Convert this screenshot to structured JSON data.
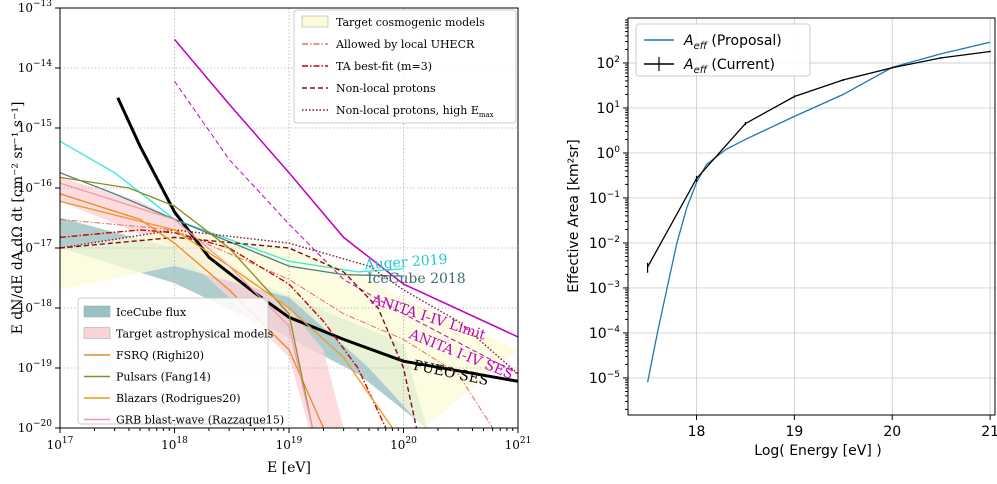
{
  "chart_data": [
    {
      "type": "line",
      "xlabel": "E [eV]",
      "ylabel": "E dN/dE dA dΩ dt [cm⁻² sr⁻¹ s⁻¹]",
      "x_scale": "log",
      "y_scale": "log",
      "xlim": [
        1e+17,
        1e+21
      ],
      "ylim": [
        1e-20,
        1e-13
      ],
      "x_ticks": [
        {
          "value": 1e+17,
          "base": "10",
          "exp": "17"
        },
        {
          "value": 1e+18,
          "base": "10",
          "exp": "18"
        },
        {
          "value": 1e+19,
          "base": "10",
          "exp": "19"
        },
        {
          "value": 1e+20,
          "base": "10",
          "exp": "20"
        },
        {
          "value": 1e+21,
          "base": "10",
          "exp": "21"
        }
      ],
      "y_ticks": [
        {
          "value": 1e-13,
          "base": "10",
          "exp": "−13"
        },
        {
          "value": 1e-14,
          "base": "10",
          "exp": "−14"
        },
        {
          "value": 1e-15,
          "base": "10",
          "exp": "−15"
        },
        {
          "value": 1e-16,
          "base": "10",
          "exp": "−16"
        },
        {
          "value": 1e-17,
          "base": "10",
          "exp": "−17"
        },
        {
          "value": 1e-18,
          "base": "10",
          "exp": "−18"
        },
        {
          "value": 1e-19,
          "base": "10",
          "exp": "−19"
        },
        {
          "value": 1e-20,
          "base": "10",
          "exp": "−20"
        }
      ],
      "grid": true,
      "legend_upper": {
        "placement": "top-right",
        "entries": [
          {
            "label": "Target cosmogenic models",
            "kind": "patch",
            "color": "#fbfbd7"
          },
          {
            "label": "Allowed by local UHECR",
            "kind": "line",
            "color": "#e46d6d",
            "dash": "dashdot-light"
          },
          {
            "label": "TA best-fit (m=3)",
            "kind": "line",
            "color": "#cc0000",
            "dash": "dashdot"
          },
          {
            "label": "Non-local protons",
            "kind": "line",
            "color": "#7b1010",
            "dash": "dashed"
          },
          {
            "label": "Non-local protons, high E",
            "sub": "max",
            "kind": "line",
            "color": "#8b1030",
            "dash": "dotted"
          }
        ]
      },
      "legend_lower": {
        "placement": "bottom-left",
        "entries": [
          {
            "label": "IceCube flux",
            "kind": "patch",
            "color": "#9cc1c2"
          },
          {
            "label": "Target astrophysical models",
            "kind": "patch",
            "color": "#fbd3d7"
          },
          {
            "label": "FSRQ (Righi20)",
            "kind": "line",
            "color": "#e8892a"
          },
          {
            "label": "Pulsars (Fang14)",
            "kind": "line",
            "color": "#8c8c1a"
          },
          {
            "label": "Blazars (Rodrigues20)",
            "kind": "line",
            "color": "#f09a1a"
          },
          {
            "label": "GRB blast-wave (Razzaque15)",
            "kind": "line",
            "color": "#ee9aa8"
          }
        ]
      },
      "annotations": [
        {
          "text": "Auger 2019",
          "x": 4.6e+19,
          "y": 4.4e-18,
          "color": "#22c8c8",
          "rotate": -4
        },
        {
          "text": "IceCube 2018",
          "x": 4.8e+19,
          "y": 2.6e-18,
          "color": "#3d6b6b",
          "rotate": 0
        },
        {
          "text": "ANITA I-IV Limit",
          "x": 5.2e+19,
          "y": 1.2e-18,
          "color": "#c000c0",
          "rotate": 18
        },
        {
          "text": "ANITA I-IV SES",
          "x": 1.1e+20,
          "y": 3.2e-19,
          "color": "#c000c0",
          "rotate": 22
        },
        {
          "text": "PUEO SES",
          "x": 1.2e+20,
          "y": 9.5e-20,
          "color": "#000000",
          "rotate": 12
        }
      ],
      "bands": [
        {
          "name": "IceCube flux",
          "color": "#9cc1c2",
          "upper": [
            [
              1e+17,
              1e-17
            ],
            [
              1e+18,
              2.6e-18
            ],
            [
              1e+19,
              3.2e-19
            ],
            [
              4e+19,
              8e-20
            ],
            [
              1e+20,
              2e-20
            ]
          ],
          "lower": [
            [
              1e+17,
              3.2e-17
            ],
            [
              1e+18,
              1e-17
            ],
            [
              1e+19,
              1.6e-18
            ],
            [
              1e+20,
              2.5e-19
            ],
            [
              1.6e+20,
              1e-20
            ]
          ]
        },
        {
          "name": "Target astrophysical models",
          "color": "#fbd3d7",
          "upper": [
            [
              1e+17,
              1.5e-16
            ],
            [
              5e+17,
              6e-17
            ],
            [
              1e+18,
              3e-17
            ],
            [
              3e+18,
              6e-18
            ],
            [
              1e+19,
              1e-18
            ],
            [
              2e+19,
              2e-19
            ],
            [
              3e+19,
              1e-20
            ]
          ],
          "lower": [
            [
              1e+17,
              6e-17
            ],
            [
              1e+18,
              1e-17
            ],
            [
              3e+18,
              1.5e-18
            ],
            [
              1e+19,
              1.5e-19
            ],
            [
              1.5e+19,
              1e-20
            ]
          ]
        },
        {
          "name": "Target cosmogenic models",
          "color": "#fbfbd7",
          "upper": [
            [
              1e+17,
              1e-17
            ],
            [
              1e+18,
              2e-17
            ],
            [
              1e+19,
              1e-17
            ],
            [
              3e+19,
              5e-18
            ],
            [
              1e+20,
              1.5e-18
            ],
            [
              1e+21,
              2e-19
            ]
          ],
          "lower": [
            [
              1e+17,
              2e-18
            ],
            [
              1e+18,
              5e-18
            ],
            [
              1e+19,
              1.5e-18
            ],
            [
              5e+19,
              1e-19
            ],
            [
              1.5e+20,
              1e-20
            ]
          ]
        }
      ],
      "series": [
        {
          "label": "PUEO SES",
          "color": "#000000",
          "width": 3,
          "dash": "solid",
          "points": [
            [
              3.2e+17,
              3.2e-15
            ],
            [
              5e+17,
              5e-16
            ],
            [
              1e+18,
              4e-17
            ],
            [
              2e+18,
              7e-18
            ],
            [
              5e+18,
              1.8e-18
            ],
            [
              1e+19,
              7e-19
            ],
            [
              3e+19,
              3e-19
            ],
            [
              1e+20,
              1.3e-19
            ],
            [
              1e+21,
              6e-20
            ]
          ]
        },
        {
          "label": "ANITA I-IV Limit",
          "color": "#c000c0",
          "width": 1.5,
          "dash": "solid",
          "points": [
            [
              1e+18,
              3e-14
            ],
            [
              3e+18,
              2.5e-15
            ],
            [
              1e+19,
              1.8e-16
            ],
            [
              3e+19,
              1.5e-17
            ],
            [
              1e+20,
              2.5e-18
            ],
            [
              1e+21,
              3.3e-19
            ]
          ]
        },
        {
          "label": "ANITA I-IV SES",
          "color": "#c000c0",
          "width": 1,
          "dash": "dashed",
          "points": [
            [
              1e+18,
              6e-15
            ],
            [
              3e+18,
              3e-16
            ],
            [
              1e+19,
              2.5e-17
            ],
            [
              3e+19,
              3e-18
            ],
            [
              1e+20,
              8e-19
            ],
            [
              1e+21,
              8e-20
            ]
          ]
        },
        {
          "label": "Auger 2019",
          "color": "#33e6e6",
          "width": 1.3,
          "dash": "solid",
          "points": [
            [
              1e+17,
              6e-16
            ],
            [
              3e+17,
              1.8e-16
            ],
            [
              1e+18,
              3e-17
            ],
            [
              1e+19,
              6e-18
            ],
            [
              4e+19,
              4e-18
            ],
            [
              1e+20,
              4.5e-18
            ]
          ]
        },
        {
          "label": "IceCube 2018",
          "color": "#4a7e80",
          "width": 1.3,
          "dash": "solid",
          "points": [
            [
              1e+17,
              1.8e-16
            ],
            [
              3e+17,
              8e-17
            ],
            [
              1e+18,
              3e-17
            ],
            [
              1e+19,
              5e-18
            ],
            [
              3e+19,
              3.6e-18
            ],
            [
              1e+20,
              3.4e-18
            ]
          ]
        },
        {
          "label": "Allowed by local UHECR",
          "color": "#e46d6d",
          "width": 1,
          "dash": "dashdot-light",
          "points": [
            [
              1e+17,
              3e-17
            ],
            [
              1e+18,
              2e-17
            ],
            [
              1e+19,
              3e-18
            ],
            [
              3e+19,
              8e-19
            ],
            [
              1e+20,
              3e-19
            ],
            [
              3e+20,
              8e-20
            ],
            [
              6e+20,
              1e-20
            ]
          ]
        },
        {
          "label": "TA best-fit (m=3)",
          "color": "#cc0000",
          "width": 1.4,
          "dash": "dashdot",
          "points": [
            [
              1e+17,
              1.5e-17
            ],
            [
              5e+17,
              2e-17
            ],
            [
              1e+18,
              1.8e-17
            ],
            [
              3e+18,
              1e-17
            ],
            [
              1e+19,
              2.5e-18
            ],
            [
              2e+19,
              6e-19
            ],
            [
              4e+19,
              1e-19
            ],
            [
              7e+19,
              1e-20
            ]
          ]
        },
        {
          "label": "Non-local protons",
          "color": "#7b1010",
          "width": 1.4,
          "dash": "dashed",
          "points": [
            [
              1e+17,
              1e-17
            ],
            [
              1e+18,
              1.5e-17
            ],
            [
              1e+19,
              1e-17
            ],
            [
              3e+19,
              4e-18
            ],
            [
              6e+19,
              1e-18
            ],
            [
              1e+20,
              1e-19
            ],
            [
              1.3e+20,
              1e-20
            ]
          ]
        },
        {
          "label": "Non-local protons, high Emax",
          "color": "#8b1030",
          "width": 1.4,
          "dash": "dotted",
          "points": [
            [
              1e+17,
              1e-17
            ],
            [
              1e+18,
              2e-17
            ],
            [
              1e+19,
              1.2e-17
            ],
            [
              5e+19,
              5e-18
            ],
            [
              1e+20,
              2e-18
            ],
            [
              3e+20,
              6e-19
            ],
            [
              1e+21,
              8e-20
            ]
          ]
        },
        {
          "label": "FSRQ (Righi20)",
          "color": "#e8892a",
          "width": 1.3,
          "dash": "solid",
          "points": [
            [
              1e+17,
              8e-17
            ],
            [
              5e+17,
              3e-17
            ],
            [
              1e+18,
              1.2e-17
            ],
            [
              3e+18,
              2e-18
            ],
            [
              1e+19,
              2e-19
            ],
            [
              2e+19,
              1e-20
            ]
          ]
        },
        {
          "label": "Pulsars (Fang14)",
          "color": "#8c8c1a",
          "width": 1.3,
          "dash": "solid",
          "points": [
            [
              1e+17,
              1.5e-16
            ],
            [
              4e+17,
              1e-16
            ],
            [
              1e+18,
              5e-17
            ],
            [
              3e+18,
              1e-17
            ],
            [
              1e+19,
              8e-19
            ],
            [
              1.6e+19,
              1e-20
            ]
          ]
        },
        {
          "label": "Blazars (Rodrigues20)",
          "color": "#f09a1a",
          "width": 1.3,
          "dash": "solid",
          "points": [
            [
              1e+17,
              6e-17
            ],
            [
              1e+18,
              2e-17
            ],
            [
              3e+18,
              5e-18
            ],
            [
              1e+19,
              1e-18
            ],
            [
              3e+19,
              1.5e-19
            ],
            [
              8e+19,
              1e-20
            ]
          ]
        },
        {
          "label": "GRB blast-wave (Razzaque15)",
          "color": "#ee9aa8",
          "width": 1.3,
          "dash": "solid",
          "points": [
            [
              1e+17,
              1.2e-16
            ],
            [
              1e+18,
              3e-17
            ],
            [
              3e+18,
              5e-18
            ],
            [
              1e+19,
              5e-19
            ],
            [
              1.6e+19,
              1e-20
            ]
          ]
        }
      ]
    },
    {
      "type": "line",
      "xlabel": "Log( Energy [eV] )",
      "ylabel": "Effective Area [km²sr]",
      "x_scale": "linear",
      "y_scale": "log",
      "xlim": [
        17.3,
        21.05
      ],
      "ylim": [
        1.5e-06,
        1000
      ],
      "x_ticks": [
        {
          "value": 18,
          "label": "18"
        },
        {
          "value": 19,
          "label": "19"
        },
        {
          "value": 20,
          "label": "20"
        },
        {
          "value": 21,
          "label": "21"
        }
      ],
      "y_ticks": [
        {
          "value": 100.0,
          "base": "10",
          "exp": "2"
        },
        {
          "value": 10.0,
          "base": "10",
          "exp": "1"
        },
        {
          "value": 1.0,
          "base": "10",
          "exp": "0"
        },
        {
          "value": 0.1,
          "base": "10",
          "exp": "−1"
        },
        {
          "value": 0.01,
          "base": "10",
          "exp": "−2"
        },
        {
          "value": 0.001,
          "base": "10",
          "exp": "−3"
        },
        {
          "value": 0.0001,
          "base": "10",
          "exp": "−4"
        },
        {
          "value": 1e-05,
          "base": "10",
          "exp": "−5"
        }
      ],
      "grid": true,
      "legend": {
        "placement": "top-left",
        "entries": [
          {
            "label_italic": "A",
            "label_sub": "eff",
            "label_rest": " (Proposal)",
            "color": "#1f77b4",
            "marker": "none"
          },
          {
            "label_italic": "A",
            "label_sub": "eff",
            "label_rest": " (Current)",
            "color": "#000000",
            "marker": "errorbar"
          }
        ]
      },
      "series": [
        {
          "name": "Aeff (Proposal)",
          "color": "#1f77b4",
          "x": [
            17.5,
            17.6,
            17.7,
            17.8,
            17.9,
            18.0,
            18.1,
            18.3,
            18.5,
            19.0,
            19.5,
            20.0,
            20.5,
            21.0
          ],
          "y": [
            8e-06,
            0.0001,
            0.001,
            0.01,
            0.06,
            0.22,
            0.55,
            1.2,
            2.0,
            6.5,
            20,
            80,
            160,
            290
          ]
        },
        {
          "name": "Aeff (Current)",
          "color": "#000000",
          "x": [
            17.5,
            18.0,
            18.5,
            19.0,
            19.5,
            20.0,
            20.5,
            21.0
          ],
          "y": [
            0.0029,
            0.27,
            4.5,
            18,
            42,
            78,
            130,
            180
          ],
          "yerr_rel": [
            0.25,
            0.15,
            0.08,
            0.06,
            0.05,
            0.04,
            0.04,
            0.04
          ]
        }
      ]
    }
  ]
}
